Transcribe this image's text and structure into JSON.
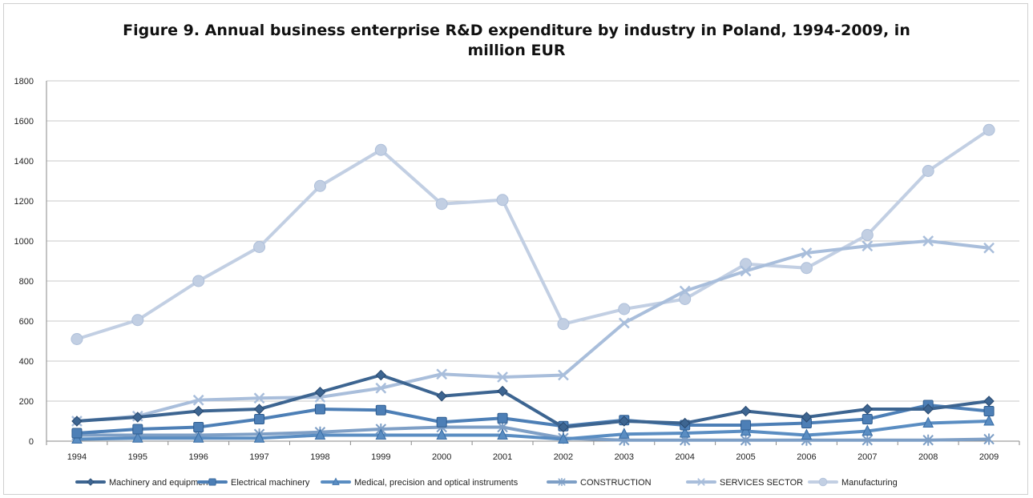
{
  "chart_data": {
    "type": "line",
    "title_line1": "Figure 9. Annual business enterprise R&D expenditure by industry in Poland, 1994-2009, in",
    "title_line2": "million EUR",
    "xlabel": "",
    "ylabel": "",
    "ylim": [
      0,
      1800
    ],
    "yticks": [
      "0",
      "200",
      "400",
      "600",
      "800",
      "1000",
      "1200",
      "1400",
      "1600",
      "1800"
    ],
    "categories": [
      "1994",
      "1995",
      "1996",
      "1997",
      "1998",
      "1999",
      "2000",
      "2001",
      "2002",
      "2003",
      "2004",
      "2005",
      "2006",
      "2007",
      "2008",
      "2009"
    ],
    "grid": true,
    "legend_position": "bottom",
    "series": [
      {
        "name": "Machinery and equipment",
        "color": "#3d6591",
        "marker": "diamond",
        "values": [
          100,
          120,
          150,
          160,
          245,
          330,
          225,
          250,
          70,
          100,
          90,
          150,
          120,
          160,
          160,
          200
        ]
      },
      {
        "name": "Electrical machinery",
        "color": "#4d7fb6",
        "marker": "square",
        "values": [
          40,
          60,
          70,
          110,
          160,
          155,
          95,
          115,
          75,
          105,
          80,
          80,
          90,
          110,
          180,
          150
        ]
      },
      {
        "name": "Medical, precision and optical instruments",
        "color": "#5a8dc2",
        "marker": "triangle",
        "values": [
          10,
          15,
          15,
          15,
          30,
          30,
          30,
          30,
          10,
          35,
          40,
          50,
          30,
          50,
          90,
          100
        ]
      },
      {
        "name": "CONSTRUCTION",
        "color": "#7e9fc6",
        "marker": "star",
        "values": [
          30,
          30,
          30,
          35,
          45,
          60,
          70,
          70,
          15,
          5,
          5,
          5,
          5,
          5,
          5,
          10
        ]
      },
      {
        "name": "SERVICES SECTOR",
        "color": "#a9bedb",
        "marker": "x",
        "values": [
          100,
          125,
          205,
          215,
          220,
          265,
          335,
          320,
          330,
          590,
          750,
          850,
          940,
          975,
          1000,
          965
        ]
      },
      {
        "name": "Manufacturing",
        "color": "#c2cfe3",
        "marker": "circle",
        "values": [
          510,
          605,
          800,
          970,
          1275,
          1455,
          1185,
          1205,
          585,
          660,
          710,
          885,
          865,
          1030,
          1350,
          1555
        ]
      }
    ]
  }
}
